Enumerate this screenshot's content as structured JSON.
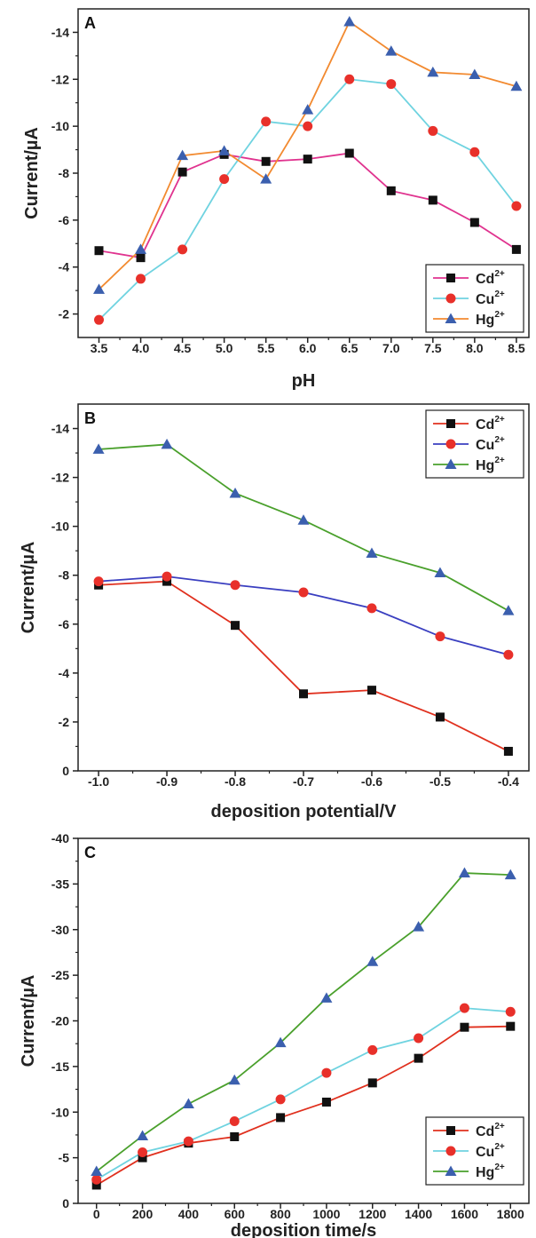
{
  "chart_data": [
    {
      "type": "line",
      "panel_label": "A",
      "xlabel": "pH",
      "ylabel": "Current/µA",
      "xlim": [
        3.25,
        8.65
      ],
      "ylim": [
        -1,
        -15
      ],
      "xticks": [
        3.5,
        4.0,
        4.5,
        5.0,
        5.5,
        6.0,
        6.5,
        7.0,
        7.5,
        8.0,
        8.5
      ],
      "xtick_labels": [
        "3.5",
        "4.0",
        "4.5",
        "5.0",
        "5.5",
        "6.0",
        "6.5",
        "7.0",
        "7.5",
        "8.0",
        "8.5"
      ],
      "yticks": [
        -2,
        -4,
        -6,
        -8,
        -10,
        -12,
        -14
      ],
      "ytick_labels": [
        "-2",
        "-4",
        "-6",
        "-8",
        "-10",
        "-12",
        "-14"
      ],
      "legend_position": "bottom-right",
      "x": [
        3.5,
        4.0,
        4.5,
        5.0,
        5.5,
        6.0,
        6.5,
        7.0,
        7.5,
        8.0,
        8.5
      ],
      "series": [
        {
          "name": "Cd",
          "charge": "2+",
          "color": "#e0338f",
          "marker": "square",
          "values": [
            -4.7,
            -4.4,
            -8.05,
            -8.8,
            -8.5,
            -8.6,
            -8.85,
            -7.25,
            -6.85,
            -5.9,
            -4.75
          ]
        },
        {
          "name": "Cu",
          "charge": "2+",
          "color": "#6fd3e0",
          "marker": "circle",
          "values": [
            -1.75,
            -3.5,
            -4.75,
            -7.75,
            -10.2,
            -10.0,
            -12.0,
            -11.8,
            -9.8,
            -8.9,
            -6.6
          ]
        },
        {
          "name": "Hg",
          "charge": "2+",
          "color": "#f28a30",
          "marker": "triangle",
          "values": [
            -3.05,
            -4.75,
            -8.75,
            -8.95,
            -7.75,
            -10.7,
            -14.45,
            -13.2,
            -12.3,
            -12.2,
            -11.7
          ]
        }
      ]
    },
    {
      "type": "line",
      "panel_label": "B",
      "xlabel": "deposition potential/V",
      "ylabel": "Current/µA",
      "xlim": [
        -1.03,
        -0.37
      ],
      "ylim": [
        0,
        -15
      ],
      "xticks": [
        -1.0,
        -0.9,
        -0.8,
        -0.7,
        -0.6,
        -0.5,
        -0.4
      ],
      "xtick_labels": [
        "-1.0",
        "-0.9",
        "-0.8",
        "-0.7",
        "-0.6",
        "-0.5",
        "-0.4"
      ],
      "yticks": [
        0,
        -2,
        -4,
        -6,
        -8,
        -10,
        -12,
        -14
      ],
      "ytick_labels": [
        "0",
        "-2",
        "-4",
        "-6",
        "-8",
        "-10",
        "-12",
        "-14"
      ],
      "legend_position": "top-right",
      "x": [
        -1.0,
        -0.9,
        -0.8,
        -0.7,
        -0.6,
        -0.5,
        -0.4
      ],
      "series": [
        {
          "name": "Cd",
          "charge": "2+",
          "color": "#e0301e",
          "marker": "square",
          "values": [
            -7.6,
            -7.75,
            -5.95,
            -3.15,
            -3.3,
            -2.2,
            -0.8
          ]
        },
        {
          "name": "Cu",
          "charge": "2+",
          "color": "#3a3fc0",
          "marker": "circle",
          "values": [
            -7.75,
            -7.95,
            -7.6,
            -7.3,
            -6.65,
            -5.5,
            -4.75
          ]
        },
        {
          "name": "Hg",
          "charge": "2+",
          "color": "#4aa02c",
          "marker": "triangle",
          "values": [
            -13.15,
            -13.35,
            -11.35,
            -10.25,
            -8.9,
            -8.1,
            -6.55
          ]
        }
      ]
    },
    {
      "type": "line",
      "panel_label": "C",
      "xlabel": "deposition time/s",
      "ylabel": "Current/µA",
      "xlim": [
        -80,
        1880
      ],
      "ylim": [
        0,
        -40
      ],
      "xticks": [
        0,
        200,
        400,
        600,
        800,
        1000,
        1200,
        1400,
        1600,
        1800
      ],
      "xtick_labels": [
        "0",
        "200",
        "400",
        "600",
        "800",
        "1000",
        "1200",
        "1400",
        "1600",
        "1800"
      ],
      "yticks": [
        0,
        -5,
        -10,
        -15,
        -20,
        -25,
        -30,
        -35,
        -40
      ],
      "ytick_labels": [
        "0",
        "-5",
        "-10",
        "-15",
        "-20",
        "-25",
        "-30",
        "-35",
        "-40"
      ],
      "legend_position": "bottom-right",
      "x": [
        0,
        200,
        400,
        600,
        800,
        1000,
        1200,
        1400,
        1600,
        1800
      ],
      "series": [
        {
          "name": "Cd",
          "charge": "2+",
          "color": "#e0301e",
          "marker": "square",
          "values": [
            -2.0,
            -5.0,
            -6.6,
            -7.3,
            -9.4,
            -11.1,
            -13.2,
            -15.9,
            -19.3,
            -19.4
          ]
        },
        {
          "name": "Cu",
          "charge": "2+",
          "color": "#6fd3e0",
          "marker": "circle",
          "values": [
            -2.6,
            -5.6,
            -6.8,
            -9.0,
            -11.4,
            -14.3,
            -16.8,
            -18.1,
            -21.4,
            -21.0
          ]
        },
        {
          "name": "Hg",
          "charge": "2+",
          "color": "#4aa02c",
          "marker": "triangle",
          "values": [
            -3.5,
            -7.4,
            -10.9,
            -13.5,
            -17.6,
            -22.5,
            -26.5,
            -30.3,
            -36.2,
            -36.0
          ]
        }
      ]
    }
  ]
}
